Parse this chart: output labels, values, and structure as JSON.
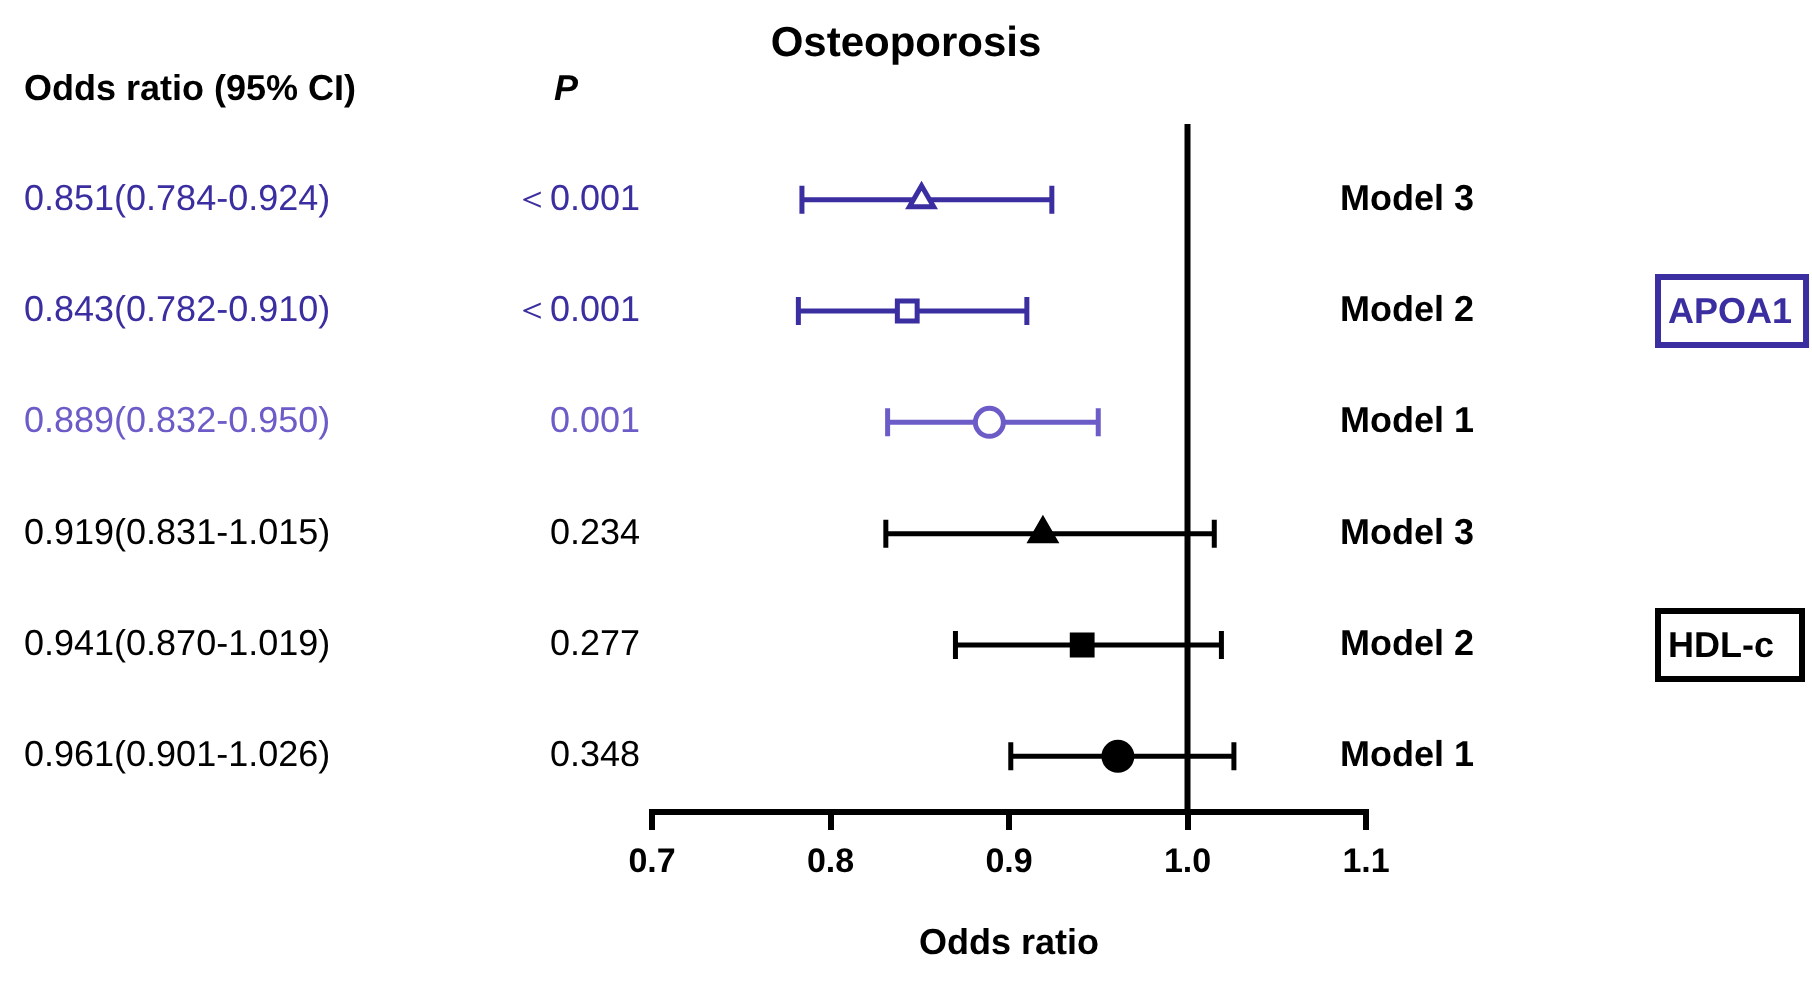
{
  "chart_data": {
    "type": "scatter",
    "orientation": "horizontal",
    "title": "Osteoporosis",
    "xlabel": "Odds ratio",
    "categories": [
      "Model 3",
      "Model 2",
      "Model 1",
      "Model 3",
      "Model 2",
      "Model 1"
    ],
    "series": [
      {
        "name": "APOA1",
        "color": "#3b2ea0",
        "colors": [
          "#3b2ea0",
          "#3b2ea0",
          "#6b5cc8",
          null,
          null,
          null
        ],
        "marker": [
          "triangle",
          "square",
          "circle",
          null,
          null,
          null
        ],
        "values": [
          0.851,
          0.843,
          0.889,
          null,
          null,
          null
        ],
        "errors": [
          [
            0.784,
            0.924
          ],
          [
            0.782,
            0.91
          ],
          [
            0.832,
            0.95
          ],
          null,
          null,
          null
        ]
      },
      {
        "name": "HDL-c",
        "color": "#000000",
        "colors": [
          null,
          null,
          null,
          "#000000",
          "#000000",
          "#000000"
        ],
        "marker": [
          null,
          null,
          null,
          "triangle",
          "square",
          "circle"
        ],
        "values": [
          null,
          null,
          null,
          0.919,
          0.941,
          0.961
        ],
        "errors": [
          null,
          null,
          null,
          [
            0.831,
            1.015
          ],
          [
            0.87,
            1.019
          ],
          [
            0.901,
            1.026
          ]
        ]
      }
    ],
    "annotations": [
      "Odds ratio (95% CI)",
      "P",
      "0.851(0.784-0.924)",
      "＜0.001",
      "0.843(0.782-0.910)",
      "＜0.001",
      "0.889(0.832-0.950)",
      "0.001",
      "0.919(0.831-1.015)",
      "0.234",
      "0.941(0.870-1.019)",
      "0.277",
      "0.961(0.901-1.026)",
      "0.348"
    ],
    "xlim": [
      0.7,
      1.1
    ],
    "xticks": [
      0.7,
      0.8,
      0.9,
      {
        "value": 1.0,
        "label": "1.0"
      },
      1.1
    ],
    "ref_lines": [
      {
        "axis": "x",
        "value": 1.0,
        "color": "#000000"
      }
    ],
    "grid": false,
    "legend": false
  }
}
